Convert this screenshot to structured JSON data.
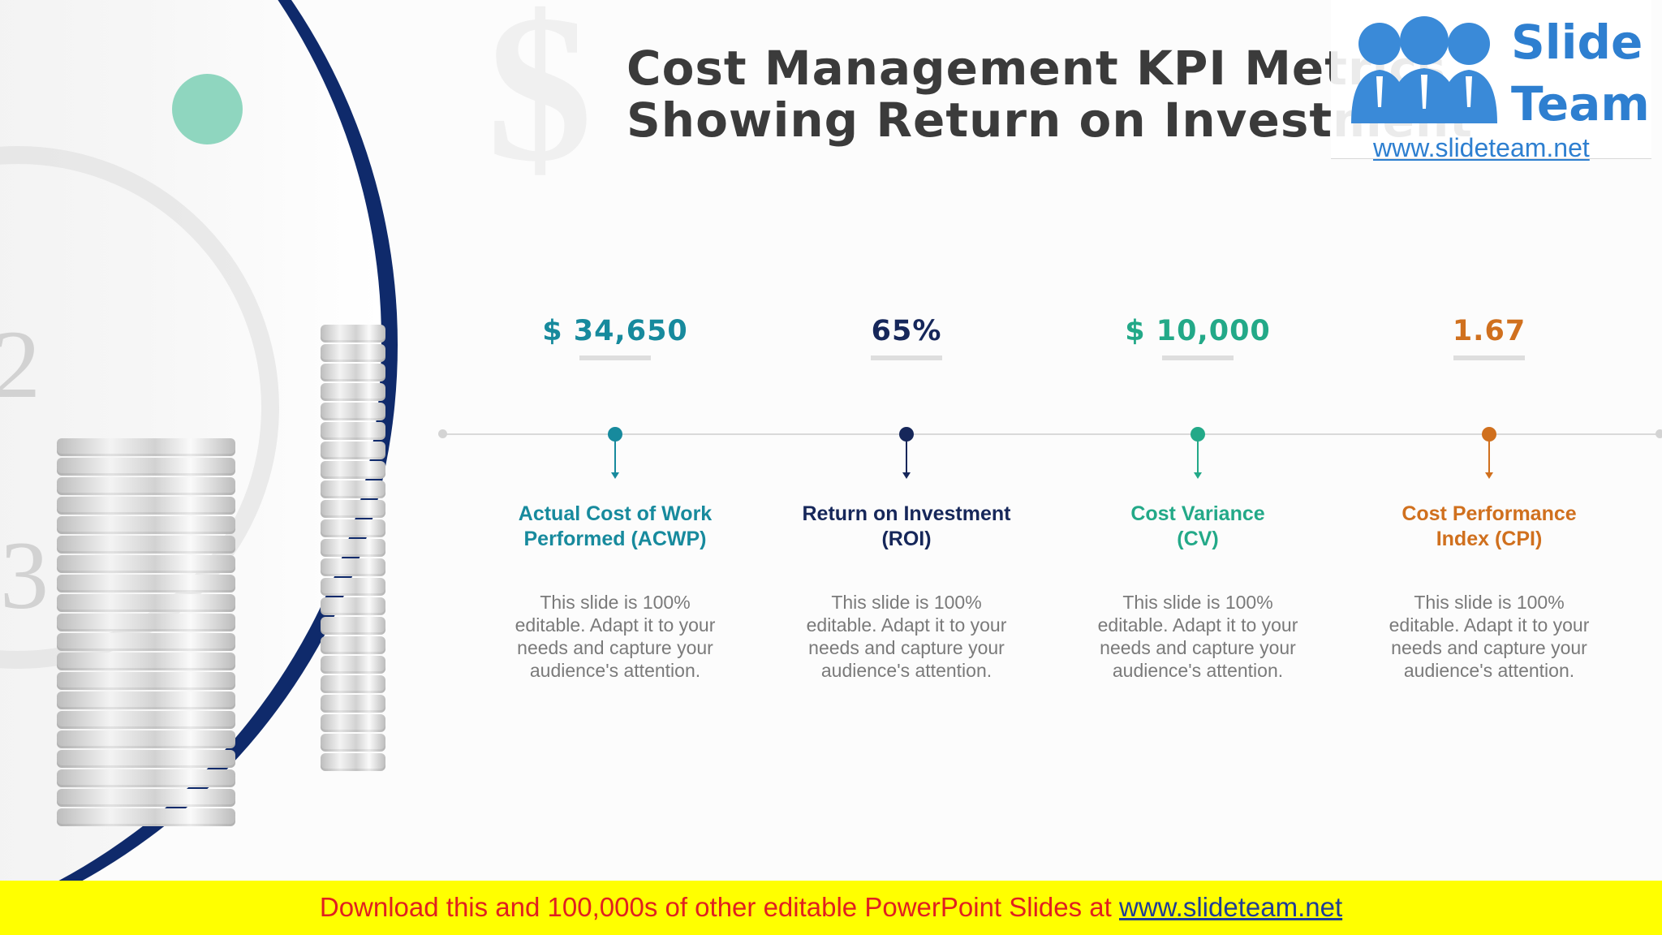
{
  "slide": {
    "title_line1": "Cost Management KPI Metrics",
    "title_line2": "Showing Return on Investment"
  },
  "logo": {
    "text_line1": "Slide",
    "text_line2": "Team",
    "url": "www.slideteam.net"
  },
  "kpis": [
    {
      "value": "$ 34,650",
      "label_line1": "Actual Cost of Work",
      "label_line2": "Performed (ACWP)",
      "desc": "This slide is 100% editable. Adapt it to your needs and capture your audience's attention.",
      "color": "#178a9d"
    },
    {
      "value": "65%",
      "label_line1": "Return on Investment",
      "label_line2": "(ROI)",
      "desc": "This slide is 100% editable. Adapt it to your needs and capture your audience's attention.",
      "color": "#16275a"
    },
    {
      "value": "$ 10,000",
      "label_line1": "Cost Variance",
      "label_line2": "(CV)",
      "desc": "This slide is 100% editable. Adapt it to your needs and capture your audience's attention.",
      "color": "#23a988"
    },
    {
      "value": "1.67",
      "label_line1": "Cost Performance",
      "label_line2": "Index (CPI)",
      "desc": "This slide is 100% editable. Adapt it to your needs and capture your audience's attention.",
      "color": "#d0701e"
    }
  ],
  "banner": {
    "text": "Download this and 100,000s of other editable PowerPoint Slides at",
    "link": "www.slideteam.net"
  },
  "colors": {
    "navy_arc": "#0f2a6b",
    "accent_green": "#8fd6bf",
    "banner_bg": "#ffff00",
    "banner_text": "#e02020"
  }
}
